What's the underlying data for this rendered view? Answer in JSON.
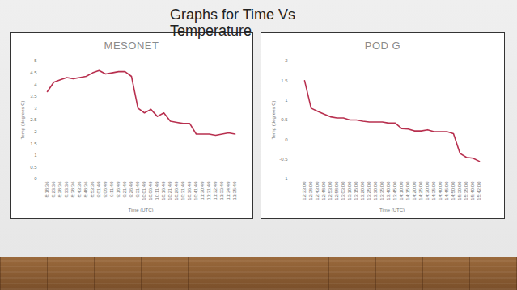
{
  "title": "Graphs for Time Vs Temperature",
  "chart_data": [
    {
      "type": "line",
      "title": "MESONET",
      "x_label": "Time (UTC)",
      "y_label": "Temp (degrees C)",
      "categories": [
        "8:18:36",
        "8:23:36",
        "8:28:36",
        "8:33:36",
        "8:38:36",
        "8:43:36",
        "8:48:36",
        "8:53:36",
        "9:01:49",
        "9:06:49",
        "9:11:49",
        "9:16:49",
        "9:21:49",
        "9:26:49",
        "9:31:49",
        "10:01:49",
        "10:06:49",
        "10:11:49",
        "10:16:49",
        "10:21:49",
        "10:26:49",
        "10:31:49",
        "10:36:49",
        "10:41:49",
        "11:30:49",
        "11:31:49",
        "11:32:49",
        "11:33:49",
        "11:34:49",
        "11:35:49"
      ],
      "values": [
        3.7,
        4.1,
        4.2,
        4.3,
        4.25,
        4.3,
        4.35,
        4.5,
        4.6,
        4.45,
        4.5,
        4.55,
        4.55,
        4.35,
        3.0,
        2.8,
        2.95,
        2.65,
        2.8,
        2.45,
        2.4,
        2.35,
        2.35,
        1.9,
        1.9,
        1.9,
        1.85,
        1.9,
        1.95,
        1.9
      ],
      "color": "#b8304f",
      "ylim": [
        0,
        5
      ],
      "yticks": [
        0,
        0.5,
        1,
        1.5,
        2,
        2.5,
        3,
        3.5,
        4,
        4.5,
        5
      ],
      "grid": false
    },
    {
      "type": "line",
      "title": "POD G",
      "x_label": "Time (UTC)",
      "y_label": "Temp (degrees C)",
      "categories": [
        "12:33:00",
        "12:38:00",
        "12:43:00",
        "12:48:00",
        "12:53:00",
        "12:58:00",
        "13:03:00",
        "13:10:00",
        "13:15:00",
        "13:20:00",
        "13:25:00",
        "13:30:00",
        "13:35:00",
        "13:40:00",
        "13:45:00",
        "14:10:00",
        "14:15:00",
        "14:20:00",
        "14:25:00",
        "14:30:00",
        "14:35:00",
        "14:40:00",
        "14:45:00",
        "14:50:00",
        "15:30:00",
        "15:35:00",
        "15:40:00",
        "15:42:00"
      ],
      "values": [
        1.5,
        0.8,
        0.72,
        0.65,
        0.58,
        0.55,
        0.55,
        0.5,
        0.5,
        0.47,
        0.45,
        0.45,
        0.45,
        0.42,
        0.42,
        0.28,
        0.27,
        0.22,
        0.22,
        0.25,
        0.2,
        0.2,
        0.2,
        0.15,
        -0.35,
        -0.45,
        -0.47,
        -0.55
      ],
      "color": "#b8304f",
      "ylim": [
        -1,
        2
      ],
      "yticks": [
        -1,
        -0.5,
        0,
        0.5,
        1,
        1.5,
        2
      ],
      "grid": false
    }
  ]
}
